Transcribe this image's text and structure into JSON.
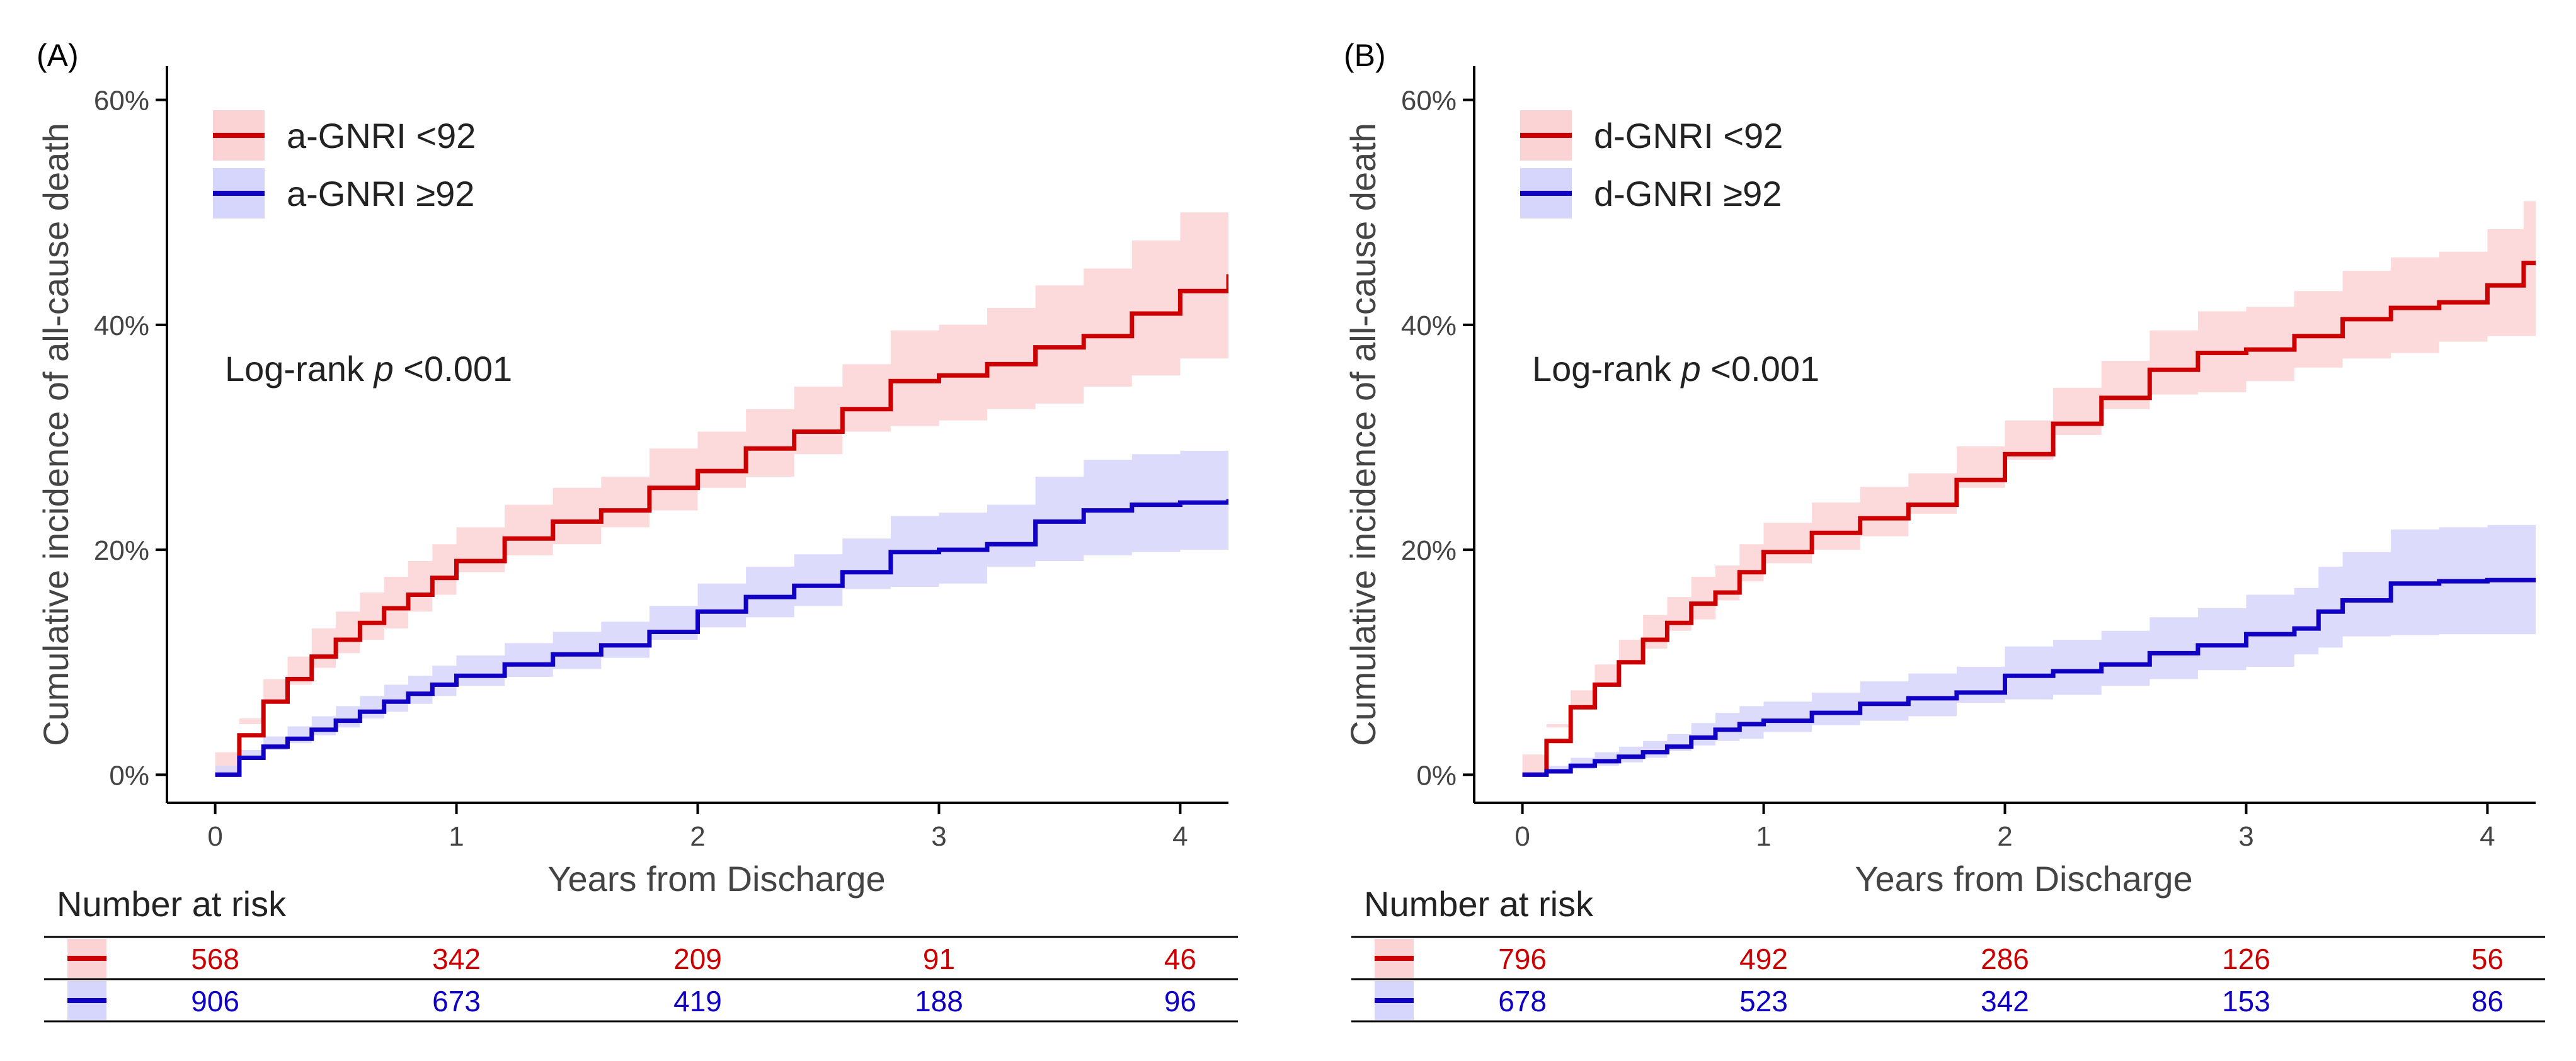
{
  "chart_data": [
    {
      "type": "line",
      "panel_label": "(A)",
      "xlabel": "Years from Discharge",
      "ylabel": "Cumulative incidence of all-cause death",
      "xlim": [
        -0.2,
        4.2
      ],
      "ylim": [
        -0.025,
        0.63
      ],
      "x_ticks": [
        0,
        1,
        2,
        3,
        4
      ],
      "y_ticks": [
        0,
        0.2,
        0.4,
        0.6
      ],
      "y_tick_labels": [
        "0%",
        "20%",
        "40%",
        "60%"
      ],
      "annotation": {
        "prefix": "Log-rank ",
        "italic": "p",
        "suffix": " <0.001"
      },
      "legend": [
        "a-GNRI <92",
        "a-GNRI ≥92"
      ],
      "series": [
        {
          "name": "a-GNRI <92",
          "color": "#cc0000",
          "band_color": "#fbd3d5",
          "x": [
            0,
            0.1,
            0.2,
            0.3,
            0.4,
            0.5,
            0.6,
            0.7,
            0.8,
            0.9,
            1.0,
            1.2,
            1.4,
            1.6,
            1.8,
            2.0,
            2.2,
            2.4,
            2.6,
            2.8,
            3.0,
            3.2,
            3.4,
            3.6,
            3.8,
            4.0,
            4.2
          ],
          "y": [
            0,
            0.035,
            0.065,
            0.085,
            0.105,
            0.12,
            0.135,
            0.148,
            0.16,
            0.175,
            0.19,
            0.21,
            0.225,
            0.235,
            0.255,
            0.27,
            0.29,
            0.305,
            0.325,
            0.35,
            0.355,
            0.365,
            0.38,
            0.39,
            0.41,
            0.43,
            0.445
          ],
          "lower": [
            0,
            0.02,
            0.045,
            0.065,
            0.08,
            0.095,
            0.108,
            0.12,
            0.13,
            0.145,
            0.16,
            0.18,
            0.195,
            0.205,
            0.22,
            0.235,
            0.255,
            0.265,
            0.285,
            0.305,
            0.31,
            0.315,
            0.325,
            0.33,
            0.345,
            0.355,
            0.37
          ],
          "upper": [
            0,
            0.05,
            0.085,
            0.105,
            0.13,
            0.145,
            0.162,
            0.176,
            0.19,
            0.205,
            0.22,
            0.24,
            0.255,
            0.265,
            0.29,
            0.305,
            0.325,
            0.345,
            0.365,
            0.395,
            0.4,
            0.415,
            0.435,
            0.45,
            0.475,
            0.5,
            0.51
          ],
          "risk": [
            568,
            342,
            209,
            91,
            46
          ]
        },
        {
          "name": "a-GNRI ≥92",
          "color": "#0f00c4",
          "band_color": "#d6d5fb",
          "x": [
            0,
            0.1,
            0.2,
            0.3,
            0.4,
            0.5,
            0.6,
            0.7,
            0.8,
            0.9,
            1.0,
            1.2,
            1.4,
            1.6,
            1.8,
            2.0,
            2.2,
            2.4,
            2.6,
            2.8,
            3.0,
            3.2,
            3.4,
            3.6,
            3.8,
            4.0,
            4.2
          ],
          "y": [
            0,
            0.015,
            0.025,
            0.032,
            0.04,
            0.048,
            0.056,
            0.065,
            0.072,
            0.08,
            0.088,
            0.098,
            0.107,
            0.115,
            0.127,
            0.145,
            0.158,
            0.168,
            0.18,
            0.198,
            0.2,
            0.205,
            0.225,
            0.235,
            0.24,
            0.242,
            0.245
          ],
          "lower": [
            0,
            0.008,
            0.016,
            0.022,
            0.028,
            0.035,
            0.042,
            0.05,
            0.056,
            0.063,
            0.07,
            0.079,
            0.087,
            0.094,
            0.104,
            0.12,
            0.131,
            0.14,
            0.15,
            0.165,
            0.167,
            0.17,
            0.185,
            0.19,
            0.195,
            0.198,
            0.2
          ],
          "upper": [
            0,
            0.022,
            0.034,
            0.043,
            0.052,
            0.061,
            0.07,
            0.08,
            0.088,
            0.097,
            0.106,
            0.117,
            0.127,
            0.136,
            0.15,
            0.17,
            0.185,
            0.196,
            0.21,
            0.23,
            0.233,
            0.24,
            0.265,
            0.28,
            0.285,
            0.288,
            0.29
          ],
          "risk": [
            906,
            673,
            419,
            188,
            96
          ]
        }
      ],
      "risk_table": {
        "title": "Number at risk",
        "times": [
          0,
          1,
          2,
          3,
          4
        ]
      }
    },
    {
      "type": "line",
      "panel_label": "(B)",
      "xlabel": "Years from Discharge",
      "ylabel": "Cumulative incidence of all-cause death",
      "xlim": [
        -0.2,
        4.2
      ],
      "ylim": [
        -0.025,
        0.63
      ],
      "x_ticks": [
        0,
        1,
        2,
        3,
        4
      ],
      "y_ticks": [
        0,
        0.2,
        0.4,
        0.6
      ],
      "y_tick_labels": [
        "0%",
        "20%",
        "40%",
        "60%"
      ],
      "annotation": {
        "prefix": "Log-rank ",
        "italic": "p",
        "suffix": " <0.001"
      },
      "legend": [
        "d-GNRI <92",
        "d-GNRI ≥92"
      ],
      "series": [
        {
          "name": "d-GNRI <92",
          "color": "#cc0000",
          "band_color": "#fbd3d5",
          "x": [
            0,
            0.1,
            0.2,
            0.3,
            0.4,
            0.5,
            0.6,
            0.7,
            0.8,
            0.9,
            1.0,
            1.2,
            1.4,
            1.6,
            1.8,
            2.0,
            2.2,
            2.4,
            2.6,
            2.8,
            3.0,
            3.2,
            3.4,
            3.6,
            3.8,
            4.0,
            4.15,
            4.2
          ],
          "y": [
            0,
            0.03,
            0.06,
            0.08,
            0.1,
            0.12,
            0.135,
            0.152,
            0.162,
            0.18,
            0.198,
            0.215,
            0.228,
            0.24,
            0.262,
            0.285,
            0.312,
            0.335,
            0.36,
            0.375,
            0.378,
            0.39,
            0.405,
            0.415,
            0.42,
            0.435,
            0.455,
            0.455
          ],
          "lower": [
            0,
            0.018,
            0.045,
            0.062,
            0.08,
            0.098,
            0.112,
            0.128,
            0.138,
            0.155,
            0.172,
            0.188,
            0.2,
            0.212,
            0.232,
            0.255,
            0.28,
            0.302,
            0.325,
            0.338,
            0.34,
            0.35,
            0.362,
            0.37,
            0.375,
            0.385,
            0.39,
            0.39
          ],
          "upper": [
            0,
            0.042,
            0.075,
            0.098,
            0.12,
            0.142,
            0.158,
            0.176,
            0.186,
            0.205,
            0.224,
            0.242,
            0.256,
            0.268,
            0.292,
            0.315,
            0.344,
            0.368,
            0.395,
            0.412,
            0.416,
            0.43,
            0.448,
            0.46,
            0.465,
            0.485,
            0.51,
            0.51
          ],
          "risk": [
            796,
            492,
            286,
            126,
            56
          ]
        },
        {
          "name": "d-GNRI ≥92",
          "color": "#0f00c4",
          "band_color": "#d6d5fb",
          "x": [
            0,
            0.1,
            0.2,
            0.3,
            0.4,
            0.5,
            0.6,
            0.7,
            0.8,
            0.9,
            1.0,
            1.2,
            1.4,
            1.6,
            1.8,
            2.0,
            2.2,
            2.4,
            2.6,
            2.8,
            3.0,
            3.2,
            3.3,
            3.4,
            3.6,
            3.8,
            4.0,
            4.2
          ],
          "y": [
            0,
            0.003,
            0.008,
            0.012,
            0.016,
            0.02,
            0.025,
            0.033,
            0.04,
            0.045,
            0.048,
            0.055,
            0.063,
            0.068,
            0.073,
            0.088,
            0.092,
            0.098,
            0.108,
            0.115,
            0.125,
            0.13,
            0.145,
            0.155,
            0.17,
            0.172,
            0.173,
            0.173
          ],
          "lower": [
            0,
            0,
            0.002,
            0.005,
            0.008,
            0.011,
            0.015,
            0.021,
            0.026,
            0.03,
            0.032,
            0.038,
            0.044,
            0.048,
            0.052,
            0.064,
            0.067,
            0.071,
            0.079,
            0.085,
            0.093,
            0.096,
            0.107,
            0.113,
            0.123,
            0.124,
            0.125,
            0.125
          ],
          "upper": [
            0,
            0.008,
            0.015,
            0.02,
            0.025,
            0.03,
            0.036,
            0.046,
            0.055,
            0.061,
            0.065,
            0.073,
            0.083,
            0.09,
            0.096,
            0.114,
            0.12,
            0.128,
            0.14,
            0.148,
            0.16,
            0.166,
            0.185,
            0.198,
            0.218,
            0.22,
            0.222,
            0.222
          ],
          "risk": [
            678,
            523,
            342,
            153,
            86
          ]
        }
      ],
      "risk_table": {
        "title": "Number at risk",
        "times": [
          0,
          1,
          2,
          3,
          4
        ]
      }
    }
  ]
}
